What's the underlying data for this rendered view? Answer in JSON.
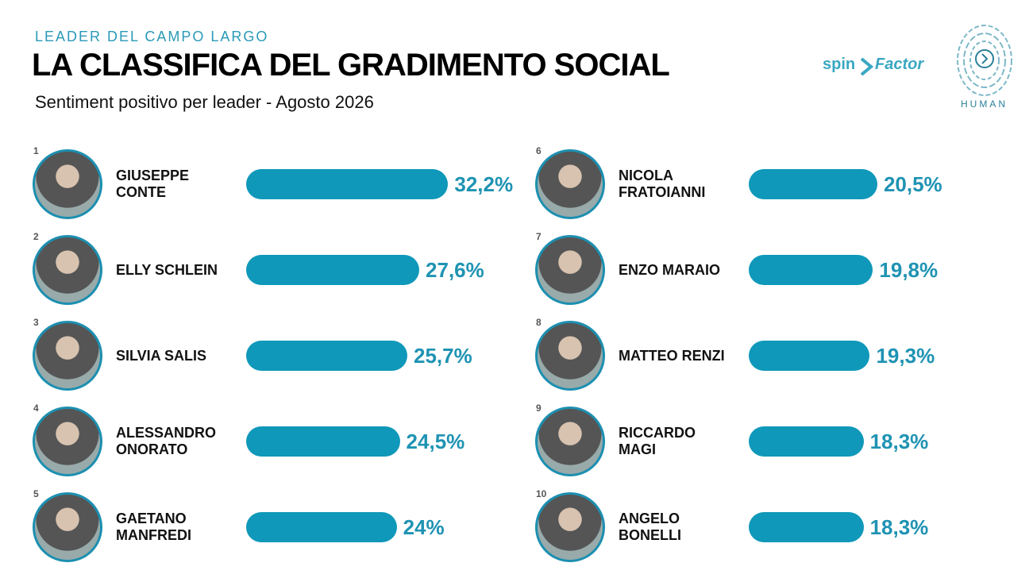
{
  "chart_data": {
    "type": "bar",
    "kicker": "LEADER DEL CAMPO LARGO",
    "title": "LA CLASSIFICA DEL GRADIMENTO SOCIAL",
    "subtitle": "Sentiment positivo per leader - Agosto 2026",
    "ranks": [
      1,
      2,
      3,
      4,
      5,
      6,
      7,
      8,
      9,
      10
    ],
    "categories": [
      "GIUSEPPE\nCONTE",
      "ELLY SCHLEIN",
      "SILVIA SALIS",
      "ALESSANDRO\nONORATO",
      "GAETANO\nMANFREDI",
      "NICOLA\nFRATOIANNI",
      "ENZO MARAIO",
      "MATTEO RENZI",
      "RICCARDO\nMAGI",
      "ANGELO\nBONELLI"
    ],
    "values": [
      32.2,
      27.6,
      25.7,
      24.5,
      24,
      20.5,
      19.8,
      19.3,
      18.3,
      18.3
    ],
    "value_labels": [
      "32,2%",
      "27,6%",
      "25,7%",
      "24,5%",
      "24%",
      "20,5%",
      "19,8%",
      "19,3%",
      "18,3%",
      "18,3%"
    ],
    "color": "#0f98b9"
  },
  "logos": {
    "spin": "spin",
    "factor": "Factor",
    "human": "HUMAN"
  }
}
